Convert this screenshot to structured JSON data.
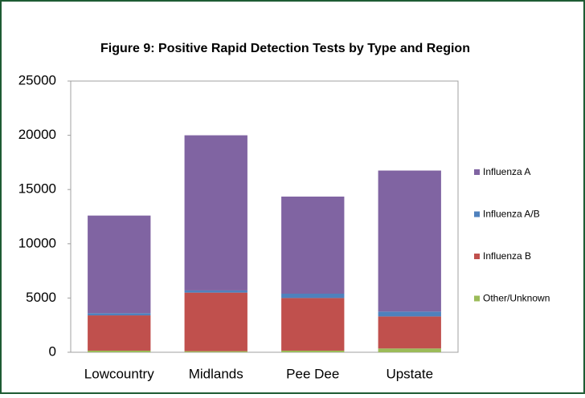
{
  "chart_data": {
    "type": "stacked_bar",
    "title": "Figure 9: Positive Rapid Detection Tests by Type and Region",
    "categories": [
      "Lowcountry",
      "Midlands",
      "Pee Dee",
      "Upstate"
    ],
    "series": [
      {
        "name": "Other/Unknown",
        "color": "#9bbb59",
        "values": [
          150,
          100,
          150,
          350
        ]
      },
      {
        "name": "Influenza B",
        "color": "#c0504d",
        "values": [
          3250,
          5400,
          4850,
          2950
        ]
      },
      {
        "name": "Influenza A/B",
        "color": "#4f81bd",
        "values": [
          200,
          200,
          400,
          450
        ]
      },
      {
        "name": "Influenza A",
        "color": "#8064a2",
        "values": [
          9000,
          14300,
          8950,
          13000
        ]
      }
    ],
    "ylim": [
      0,
      25000
    ],
    "yticks": [
      0,
      5000,
      10000,
      15000,
      20000,
      25000
    ],
    "grid": false,
    "legend": "right"
  }
}
